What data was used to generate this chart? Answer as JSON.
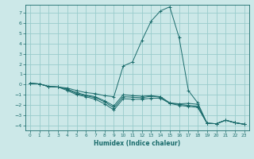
{
  "title": "",
  "xlabel": "Humidex (Indice chaleur)",
  "bg_color": "#cce8e8",
  "grid_color": "#99cccc",
  "line_color": "#1a6b6b",
  "spine_color": "#1a6b6b",
  "xlim": [
    -0.5,
    23.5
  ],
  "ylim": [
    -4.5,
    7.8
  ],
  "xticks": [
    0,
    1,
    2,
    3,
    4,
    5,
    6,
    7,
    8,
    9,
    10,
    11,
    12,
    13,
    14,
    15,
    16,
    17,
    18,
    19,
    20,
    21,
    22,
    23
  ],
  "yticks": [
    -4,
    -3,
    -2,
    -1,
    0,
    1,
    2,
    3,
    4,
    5,
    6,
    7
  ],
  "lines": [
    {
      "x": [
        0,
        1,
        2,
        3,
        4,
        5,
        6,
        7,
        8,
        9,
        10,
        11,
        12,
        13,
        14,
        15,
        16,
        17,
        18,
        19,
        20,
        21,
        22,
        23
      ],
      "y": [
        0.1,
        0.05,
        -0.2,
        -0.25,
        -0.35,
        -0.6,
        -0.8,
        -0.9,
        -1.1,
        -1.2,
        1.8,
        2.2,
        4.3,
        6.2,
        7.2,
        7.6,
        4.6,
        -0.6,
        -1.8,
        -3.8,
        -3.85,
        -3.5,
        -3.75,
        -3.9
      ]
    },
    {
      "x": [
        0,
        1,
        2,
        3,
        4,
        5,
        6,
        7,
        8,
        9,
        10,
        11,
        12,
        13,
        14,
        15,
        16,
        17,
        18,
        19,
        20,
        21,
        22,
        23
      ],
      "y": [
        0.1,
        0.05,
        -0.2,
        -0.25,
        -0.45,
        -0.8,
        -1.05,
        -1.2,
        -1.6,
        -2.1,
        -1.0,
        -1.1,
        -1.15,
        -1.1,
        -1.2,
        -1.8,
        -1.9,
        -1.85,
        -1.95,
        -3.8,
        -3.85,
        -3.5,
        -3.75,
        -3.9
      ]
    },
    {
      "x": [
        0,
        1,
        2,
        3,
        4,
        5,
        6,
        7,
        8,
        9,
        10,
        11,
        12,
        13,
        14,
        15,
        16,
        17,
        18,
        19,
        20,
        21,
        22,
        23
      ],
      "y": [
        0.1,
        0.05,
        -0.2,
        -0.25,
        -0.5,
        -0.9,
        -1.1,
        -1.3,
        -1.7,
        -2.3,
        -1.2,
        -1.25,
        -1.3,
        -1.15,
        -1.25,
        -1.85,
        -1.95,
        -2.05,
        -2.15,
        -3.8,
        -3.85,
        -3.5,
        -3.75,
        -3.9
      ]
    },
    {
      "x": [
        0,
        1,
        2,
        3,
        4,
        5,
        6,
        7,
        8,
        9,
        10,
        11,
        12,
        13,
        14,
        15,
        16,
        17,
        18,
        19,
        20,
        21,
        22,
        23
      ],
      "y": [
        0.1,
        0.05,
        -0.2,
        -0.25,
        -0.6,
        -1.0,
        -1.2,
        -1.45,
        -1.9,
        -2.5,
        -1.4,
        -1.45,
        -1.45,
        -1.35,
        -1.35,
        -1.85,
        -2.05,
        -2.15,
        -2.25,
        -3.8,
        -3.85,
        -3.5,
        -3.75,
        -3.9
      ]
    }
  ]
}
